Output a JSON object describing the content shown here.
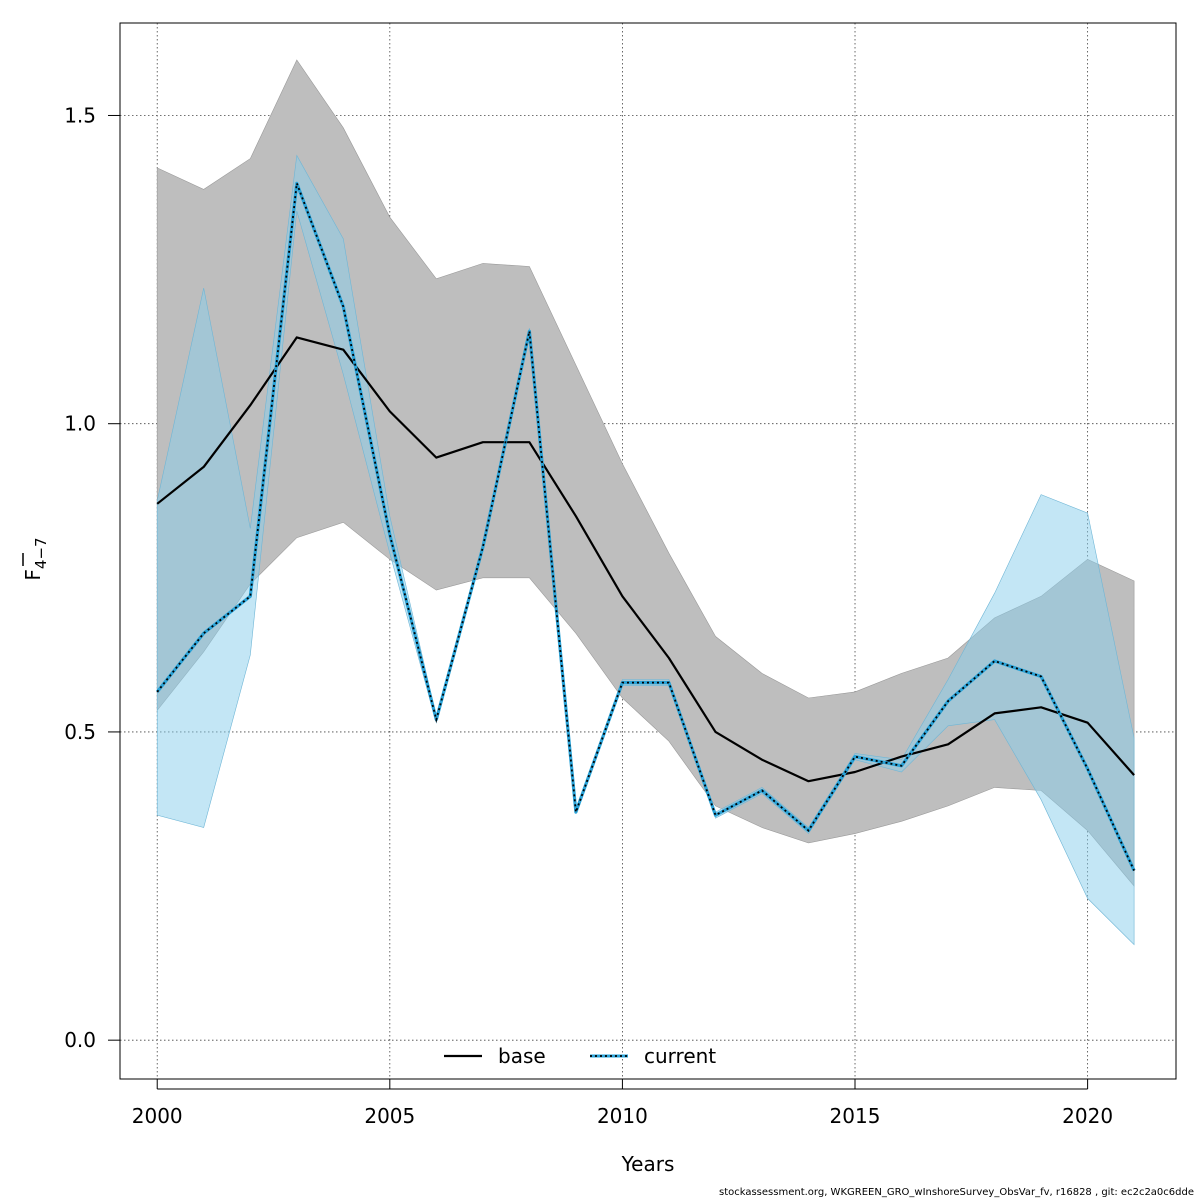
{
  "chart_data": {
    "type": "line",
    "xlabel": "Years",
    "ylabel": {
      "main": "F",
      "sub": "4−7"
    },
    "xlim": [
      1999.2,
      2021.9
    ],
    "ylim": [
      -0.063,
      1.65
    ],
    "x_ticks": [
      "2000",
      "2005",
      "2010",
      "2015",
      "2020"
    ],
    "y_ticks": [
      "0.0",
      "0.5",
      "1.0",
      "1.5"
    ],
    "grid": true,
    "legend_position": "bottom-center",
    "x": [
      2000,
      2001,
      2002,
      2003,
      2004,
      2005,
      2006,
      2007,
      2008,
      2009,
      2010,
      2011,
      2012,
      2013,
      2014,
      2015,
      2016,
      2017,
      2018,
      2019,
      2020,
      2021
    ],
    "series": [
      {
        "name": "base",
        "color": "#000000",
        "band_color": "#bebebe",
        "line_style": "solid",
        "values": [
          0.87,
          0.93,
          1.03,
          1.14,
          1.12,
          1.02,
          0.945,
          0.97,
          0.97,
          0.85,
          0.72,
          0.62,
          0.5,
          0.455,
          0.42,
          0.435,
          0.46,
          0.48,
          0.53,
          0.54,
          0.515,
          0.43
        ],
        "lower": [
          0.535,
          0.63,
          0.74,
          0.815,
          0.84,
          0.78,
          0.73,
          0.75,
          0.75,
          0.66,
          0.555,
          0.485,
          0.38,
          0.345,
          0.32,
          0.335,
          0.355,
          0.38,
          0.41,
          0.405,
          0.34,
          0.25
        ],
        "upper": [
          1.415,
          1.38,
          1.43,
          1.59,
          1.48,
          1.335,
          1.235,
          1.26,
          1.255,
          1.095,
          0.935,
          0.79,
          0.655,
          0.595,
          0.555,
          0.565,
          0.595,
          0.62,
          0.685,
          0.72,
          0.78,
          0.745
        ]
      },
      {
        "name": "current",
        "color": "#000000",
        "outline_color": "#2aa3d8",
        "band_color": "#87ceeb",
        "line_style": "dotted",
        "values": [
          0.565,
          0.66,
          0.72,
          1.39,
          1.19,
          0.82,
          0.52,
          0.8,
          1.15,
          0.37,
          0.58,
          0.58,
          0.365,
          0.405,
          0.34,
          0.46,
          0.445,
          0.55,
          0.615,
          0.59,
          0.44,
          0.275
        ],
        "lower": [
          0.365,
          0.345,
          0.625,
          1.345,
          1.08,
          0.79,
          0.515,
          0.795,
          1.145,
          0.37,
          0.575,
          0.575,
          0.36,
          0.4,
          0.335,
          0.455,
          0.435,
          0.51,
          0.52,
          0.39,
          0.23,
          0.155
        ],
        "upper": [
          0.875,
          1.22,
          0.83,
          1.435,
          1.3,
          0.85,
          0.525,
          0.805,
          1.155,
          0.375,
          0.585,
          0.585,
          0.37,
          0.41,
          0.345,
          0.465,
          0.455,
          0.585,
          0.725,
          0.885,
          0.855,
          0.49
        ]
      }
    ]
  },
  "footer": "stockassessment.org, WKGREEN_GRO_wInshoreSurvey_ObsVar_fv, r16828 , git: ec2c2a0c6dde"
}
